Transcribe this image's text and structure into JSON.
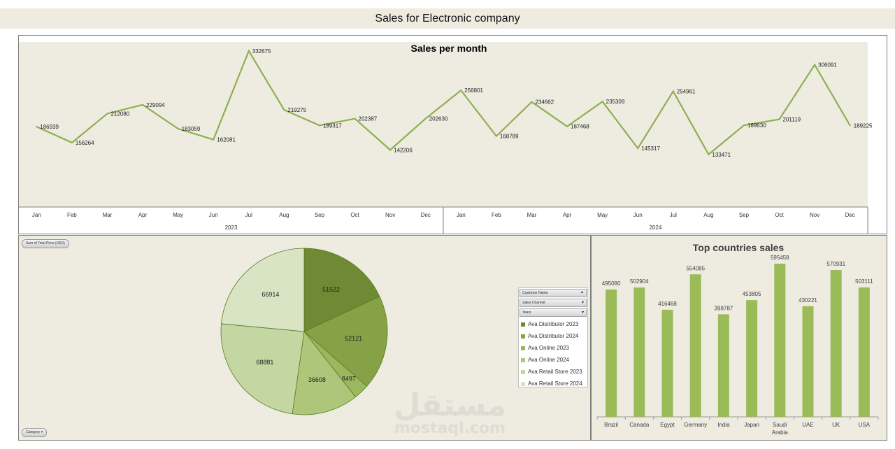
{
  "page_title": "Sales for Electronic company",
  "watermark": {
    "arabic": "مستقل",
    "latin": "mostaql.com"
  },
  "chart_data": [
    {
      "type": "line",
      "title": "Sales per month",
      "categories": [
        "Jan",
        "Feb",
        "Mar",
        "Apr",
        "May",
        "Jun",
        "Jul",
        "Aug",
        "Sep",
        "Oct",
        "Nov",
        "Dec",
        "Jan",
        "Feb",
        "Mar",
        "Apr",
        "May",
        "Jun",
        "Jul",
        "Aug",
        "Sep",
        "Oct",
        "Nov",
        "Dec"
      ],
      "groups": [
        {
          "label": "2023",
          "count": 12
        },
        {
          "label": "2024",
          "count": 12
        }
      ],
      "values": [
        186939,
        156264,
        212080,
        229094,
        183059,
        162081,
        332675,
        219275,
        189317,
        202387,
        142206,
        202630,
        256801,
        168789,
        234662,
        187468,
        235309,
        145317,
        254961,
        133471,
        189630,
        201119,
        306091,
        189225
      ],
      "ylim": [
        0,
        350000
      ],
      "grid": false,
      "color": "#8db04f"
    },
    {
      "type": "pie",
      "field_button": "Sum of Total Price (USD)",
      "category_button": "Category",
      "values": [
        51522,
        52121,
        8497,
        36608,
        68881,
        66914
      ],
      "legend_fields": [
        {
          "label": "Customer Name",
          "icon": "filter-icon"
        },
        {
          "label": "Sales Channel",
          "icon": "chevron-down-icon"
        },
        {
          "label": "Years",
          "icon": "chevron-down-icon"
        }
      ],
      "series": [
        {
          "name": "Ava Distributor 2023",
          "color": "#6f8a35"
        },
        {
          "name": "Ava Distributor 2024",
          "color": "#85a247"
        },
        {
          "name": "Ava Online 2023",
          "color": "#9ab95e"
        },
        {
          "name": "Ava Online 2024",
          "color": "#adc67a"
        },
        {
          "name": "Ava Retail Store 2023",
          "color": "#c4d6a2"
        },
        {
          "name": "Ava Retail Store 2024",
          "color": "#d8e4c3"
        }
      ]
    },
    {
      "type": "bar",
      "title": "Top countries sales",
      "categories": [
        "Brazil",
        "Canada",
        "Egypt",
        "Germany",
        "India",
        "Japan",
        "Saudi Arabia",
        "UAE",
        "UK",
        "USA"
      ],
      "values": [
        495080,
        502904,
        416468,
        554085,
        398787,
        453805,
        595458,
        430221,
        570931,
        503111
      ],
      "ylim": [
        0,
        650000
      ],
      "color": "#9bbb59"
    }
  ]
}
